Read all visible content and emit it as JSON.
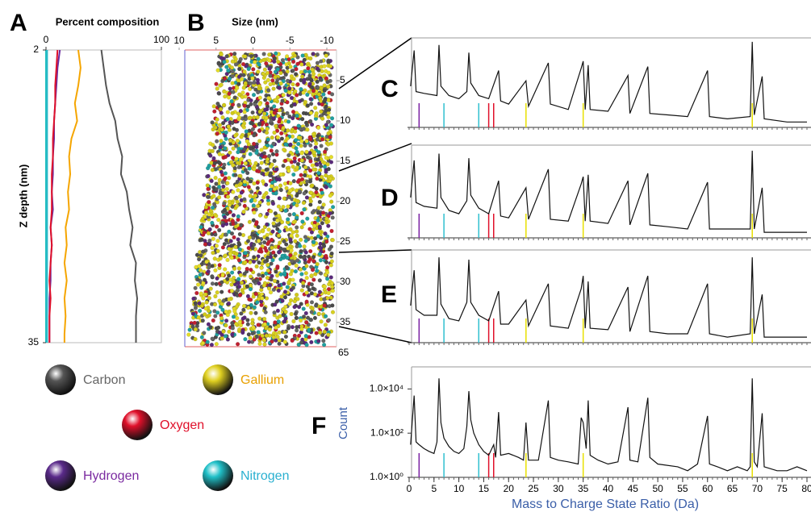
{
  "legend": [
    {
      "name": "Carbon",
      "color": "#555555",
      "text_color": "#666666"
    },
    {
      "name": "Gallium",
      "color": "#e0d020",
      "text_color": "#e8a000"
    },
    {
      "name": "Oxygen",
      "color": "#e0102a",
      "text_color": "#e0102a"
    },
    {
      "name": "Hydrogen",
      "color": "#5a2a8a",
      "text_color": "#7a2aa0"
    },
    {
      "name": "Nitrogen",
      "color": "#20c0c8",
      "text_color": "#2ab0d0"
    }
  ],
  "element_lines": [
    {
      "x": 2,
      "color": "#7a1fa2"
    },
    {
      "x": 7,
      "color": "#30c0d0"
    },
    {
      "x": 14,
      "color": "#30c0d0"
    },
    {
      "x": 16,
      "color": "#e0102a"
    },
    {
      "x": 17,
      "color": "#e0102a"
    },
    {
      "x": 23.5,
      "color": "#e8e000"
    },
    {
      "x": 35,
      "color": "#e8e000"
    },
    {
      "x": 69,
      "color": "#e8e000"
    }
  ],
  "chart_data": [
    {
      "type": "profile",
      "panel": "A",
      "title": "Percent composition",
      "y_label": "Z depth (nm)",
      "xlim": [
        0,
        100
      ],
      "xticks": [
        0,
        100
      ],
      "ylim": [
        2,
        35
      ],
      "yticks": [
        2,
        35
      ],
      "y": [
        2,
        4,
        6,
        8,
        10,
        12,
        14,
        16,
        18,
        20,
        22,
        24,
        26,
        28,
        30,
        32,
        34,
        35
      ],
      "series": [
        {
          "name": "Carbon",
          "color": "#555555",
          "values": [
            48,
            50,
            52,
            55,
            60,
            62,
            66,
            65,
            70,
            72,
            75,
            73,
            78,
            77,
            79,
            78,
            78,
            78
          ]
        },
        {
          "name": "Gallium",
          "color": "#f5a500",
          "values": [
            28,
            30,
            28,
            25,
            27,
            22,
            20,
            21,
            19,
            20,
            17,
            18,
            16,
            18,
            16,
            17,
            16,
            16
          ]
        },
        {
          "name": "Hydrogen",
          "color": "#6a2aa0",
          "values": [
            12,
            10,
            9,
            8,
            7,
            7,
            6,
            6,
            5,
            6,
            4,
            5,
            4,
            4,
            3,
            3,
            3,
            3
          ]
        },
        {
          "name": "Oxygen",
          "color": "#e0102a",
          "values": [
            10,
            9,
            8,
            8,
            7,
            6,
            6,
            5,
            5,
            5,
            4,
            5,
            4,
            3,
            4,
            3,
            3,
            3
          ]
        },
        {
          "name": "Nitrogen",
          "color": "#2ab8c8",
          "values": [
            1,
            1,
            1,
            1,
            1,
            1,
            1,
            1,
            1,
            1,
            1,
            1,
            1,
            1,
            1,
            1,
            1,
            1
          ]
        }
      ]
    },
    {
      "type": "atom-map",
      "panel": "B",
      "title": "Size (nm)",
      "xlim": [
        10,
        -10
      ],
      "xticks": [
        10,
        5,
        0,
        -5,
        -10
      ],
      "y2lim": [
        1.2,
        38
      ],
      "y2ticks": [
        5,
        10,
        15,
        20,
        25,
        30,
        35
      ],
      "annotation": "65"
    },
    {
      "type": "spectrum",
      "panel": "C",
      "xlim": [
        0,
        80
      ],
      "ylim": [
        1,
        100000
      ],
      "log_y": true,
      "x": [
        0.3,
        1,
        1.4,
        3,
        5.6,
        6,
        6.4,
        8,
        10,
        11.6,
        12,
        12.4,
        14,
        16,
        18,
        18.4,
        20,
        23.5,
        24,
        28,
        28.4,
        32,
        34.6,
        35,
        35.4,
        36,
        36.4,
        40,
        44,
        44.4,
        48,
        48.4,
        52,
        56,
        60,
        60.4,
        64,
        68.6,
        69,
        69.4,
        71,
        71.4,
        76,
        80
      ],
      "values": [
        200,
        20000,
        100,
        80,
        60,
        40000,
        200,
        60,
        40,
        100,
        15000,
        300,
        60,
        40,
        1500,
        30,
        20,
        400,
        15,
        4000,
        20,
        10,
        2000,
        5000,
        10,
        3000,
        10,
        8,
        800,
        6,
        2500,
        6,
        5,
        4,
        1500,
        4,
        3,
        4,
        60000,
        5,
        700,
        3,
        2,
        2
      ]
    },
    {
      "type": "spectrum",
      "panel": "D",
      "xlim": [
        0,
        80
      ],
      "ylim": [
        1,
        100000
      ],
      "log_y": true,
      "x": [
        0.3,
        1,
        1.4,
        3,
        5.6,
        6,
        6.4,
        8,
        10,
        11.6,
        12,
        12.4,
        14,
        16,
        18,
        18.4,
        20,
        23.5,
        24,
        28,
        28.4,
        32,
        34.6,
        35,
        35.4,
        36,
        36.4,
        40,
        44,
        44.4,
        48,
        48.4,
        52,
        56,
        60,
        60.4,
        64,
        68.6,
        69,
        69.4,
        71,
        71.4,
        76,
        80
      ],
      "values": [
        150,
        15000,
        80,
        50,
        40,
        35000,
        150,
        30,
        20,
        100,
        20000,
        200,
        40,
        20,
        1200,
        15,
        12,
        500,
        10,
        5000,
        10,
        8,
        800,
        2000,
        8,
        2500,
        8,
        6,
        1200,
        5,
        3000,
        5,
        4,
        3,
        1000,
        3,
        3,
        3,
        50000,
        3,
        500,
        2,
        2,
        2
      ]
    },
    {
      "type": "spectrum",
      "panel": "E",
      "xlim": [
        0,
        80
      ],
      "ylim": [
        1,
        100000
      ],
      "log_y": true,
      "x": [
        0.3,
        1,
        1.4,
        3,
        5.6,
        6,
        6.4,
        8,
        10,
        11.6,
        12,
        12.4,
        14,
        16,
        18,
        18.4,
        20,
        23.5,
        24,
        28,
        28.4,
        32,
        34.6,
        35,
        35.4,
        36,
        36.4,
        40,
        44,
        44.4,
        48,
        48.4,
        52,
        56,
        60,
        60.4,
        64,
        68.6,
        69,
        69.4,
        71,
        71.4,
        76,
        80
      ],
      "values": [
        100,
        8000,
        60,
        30,
        30,
        40000,
        120,
        20,
        15,
        150,
        30000,
        150,
        30,
        15,
        600,
        10,
        10,
        200,
        8,
        1500,
        8,
        6,
        800,
        4000,
        6,
        2000,
        6,
        5,
        1000,
        4,
        4000,
        4,
        3,
        3,
        1500,
        3,
        2,
        3,
        40000,
        3,
        400,
        2,
        2,
        2
      ]
    },
    {
      "type": "spectrum",
      "panel": "F",
      "xlim": [
        0,
        80
      ],
      "ylim": [
        1,
        100000
      ],
      "log_y": true,
      "x_label": "Mass to Charge State Ratio (Da)",
      "y_label": "Count",
      "xticks": [
        0,
        5,
        10,
        15,
        20,
        25,
        30,
        35,
        40,
        45,
        50,
        55,
        60,
        65,
        70,
        75,
        80
      ],
      "yticks": [
        {
          "value": 1,
          "label": "1.0×10⁰"
        },
        {
          "value": 100,
          "label": "1.0×10²"
        },
        {
          "value": 10000,
          "label": "1.0×10⁴"
        }
      ],
      "x": [
        0.3,
        1,
        1.4,
        2,
        3,
        4,
        5,
        5.6,
        6,
        6.4,
        7,
        8,
        9,
        10,
        11,
        11.6,
        12,
        12.4,
        13,
        14,
        15,
        16,
        17,
        17.4,
        18,
        18.4,
        20,
        22,
        23,
        23.5,
        24,
        26,
        28,
        28.4,
        30,
        32,
        34,
        34.6,
        35,
        35.6,
        36,
        36.4,
        38,
        40,
        42,
        44,
        44.4,
        46,
        48,
        48.4,
        50,
        54,
        56,
        58,
        60,
        60.4,
        62,
        64,
        66,
        68,
        68.6,
        69,
        69.4,
        70,
        71,
        71.4,
        74,
        76,
        78,
        80
      ],
      "values": [
        30,
        5000,
        40,
        30,
        20,
        15,
        12,
        40,
        30000,
        300,
        60,
        25,
        15,
        12,
        20,
        200,
        8000,
        400,
        100,
        30,
        15,
        10,
        30,
        8,
        900,
        10,
        12,
        8,
        6,
        300,
        6,
        6,
        3000,
        8,
        6,
        5,
        4,
        500,
        300,
        20,
        3000,
        10,
        6,
        4,
        5,
        1500,
        6,
        5,
        4000,
        8,
        4,
        3,
        2,
        4,
        600,
        4,
        3,
        2,
        3,
        2,
        3,
        30000,
        5,
        3,
        800,
        3,
        2,
        2,
        3,
        2
      ]
    }
  ]
}
